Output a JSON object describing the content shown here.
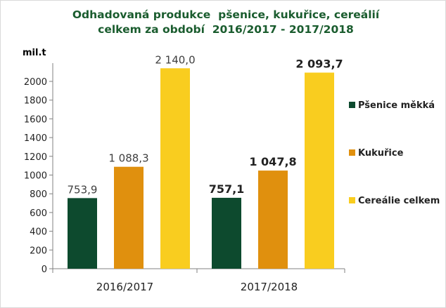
{
  "chart_data": {
    "type": "bar",
    "title_line1": "Odhadovaná produkce  pšenice, kukuřice, cereálií",
    "title_line2": "celkem za období  2016/2017 - 2017/2018",
    "unit_label": "mil.t",
    "categories": [
      "2016/2017",
      "2017/2018"
    ],
    "series": [
      {
        "name": "Pšenice měkká",
        "color": "#0d4a2e",
        "values": [
          753.9,
          757.1
        ]
      },
      {
        "name": "Kukuřice",
        "color": "#e0900e",
        "values": [
          1088.3,
          1047.8
        ]
      },
      {
        "name": "Cereálie celkem",
        "color": "#f9cd1f",
        "values": [
          2140.0,
          2093.7
        ]
      }
    ],
    "data_labels": [
      [
        "753,9",
        "1 088,3",
        "2 140,0"
      ],
      [
        "757,1",
        "1 047,8",
        "2 093,7"
      ]
    ],
    "data_labels_bold": [
      false,
      true
    ],
    "ylim": [
      0,
      2200
    ],
    "yticks": [
      0,
      200,
      400,
      600,
      800,
      1000,
      1200,
      1400,
      1600,
      1800,
      2000
    ],
    "grid": false,
    "legend_position": "right"
  }
}
